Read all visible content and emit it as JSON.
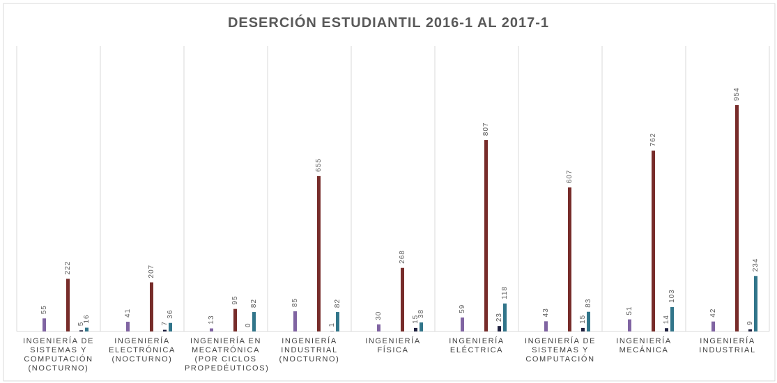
{
  "chart_data": {
    "type": "bar",
    "title": "DESERCIÓN ESTUDIANTIL 2016-1 AL 2017-1",
    "categories": [
      "INGENIERÍA DE\nSISTEMAS Y\nCOMPUTACIÓN\n(NOCTURNO)",
      "INGENIERÍA\nELECTRÓNICA\n(NOCTURNO)",
      "INGENIERÍA EN\nMECATRÓNICA\n(POR CICLOS\nPROPEDÉUTICOS)",
      "INGENIERÍA\nINDUSTRIAL\n(NOCTURNO)",
      "INGENIERÍA\nFÍSICA",
      "INGENIERÍA\nELÉCTRICA",
      "INGENIERÍA DE\nSISTEMAS Y\nCOMPUTACIÓN",
      "INGENIERÍA\nMECÁNICA",
      "INGENIERÍA\nINDUSTRIAL"
    ],
    "series": [
      {
        "color": "#8064a2",
        "values": [
          55,
          41,
          13,
          85,
          30,
          59,
          43,
          51,
          42
        ]
      },
      {
        "color": "#772c2a",
        "values": [
          222,
          207,
          95,
          655,
          268,
          807,
          607,
          762,
          954
        ]
      },
      {
        "color": "#1f2140",
        "values": [
          5,
          7,
          0,
          1,
          15,
          23,
          15,
          14,
          9
        ]
      },
      {
        "color": "#31758a",
        "values": [
          16,
          36,
          82,
          82,
          38,
          118,
          83,
          103,
          234
        ]
      }
    ]
  }
}
